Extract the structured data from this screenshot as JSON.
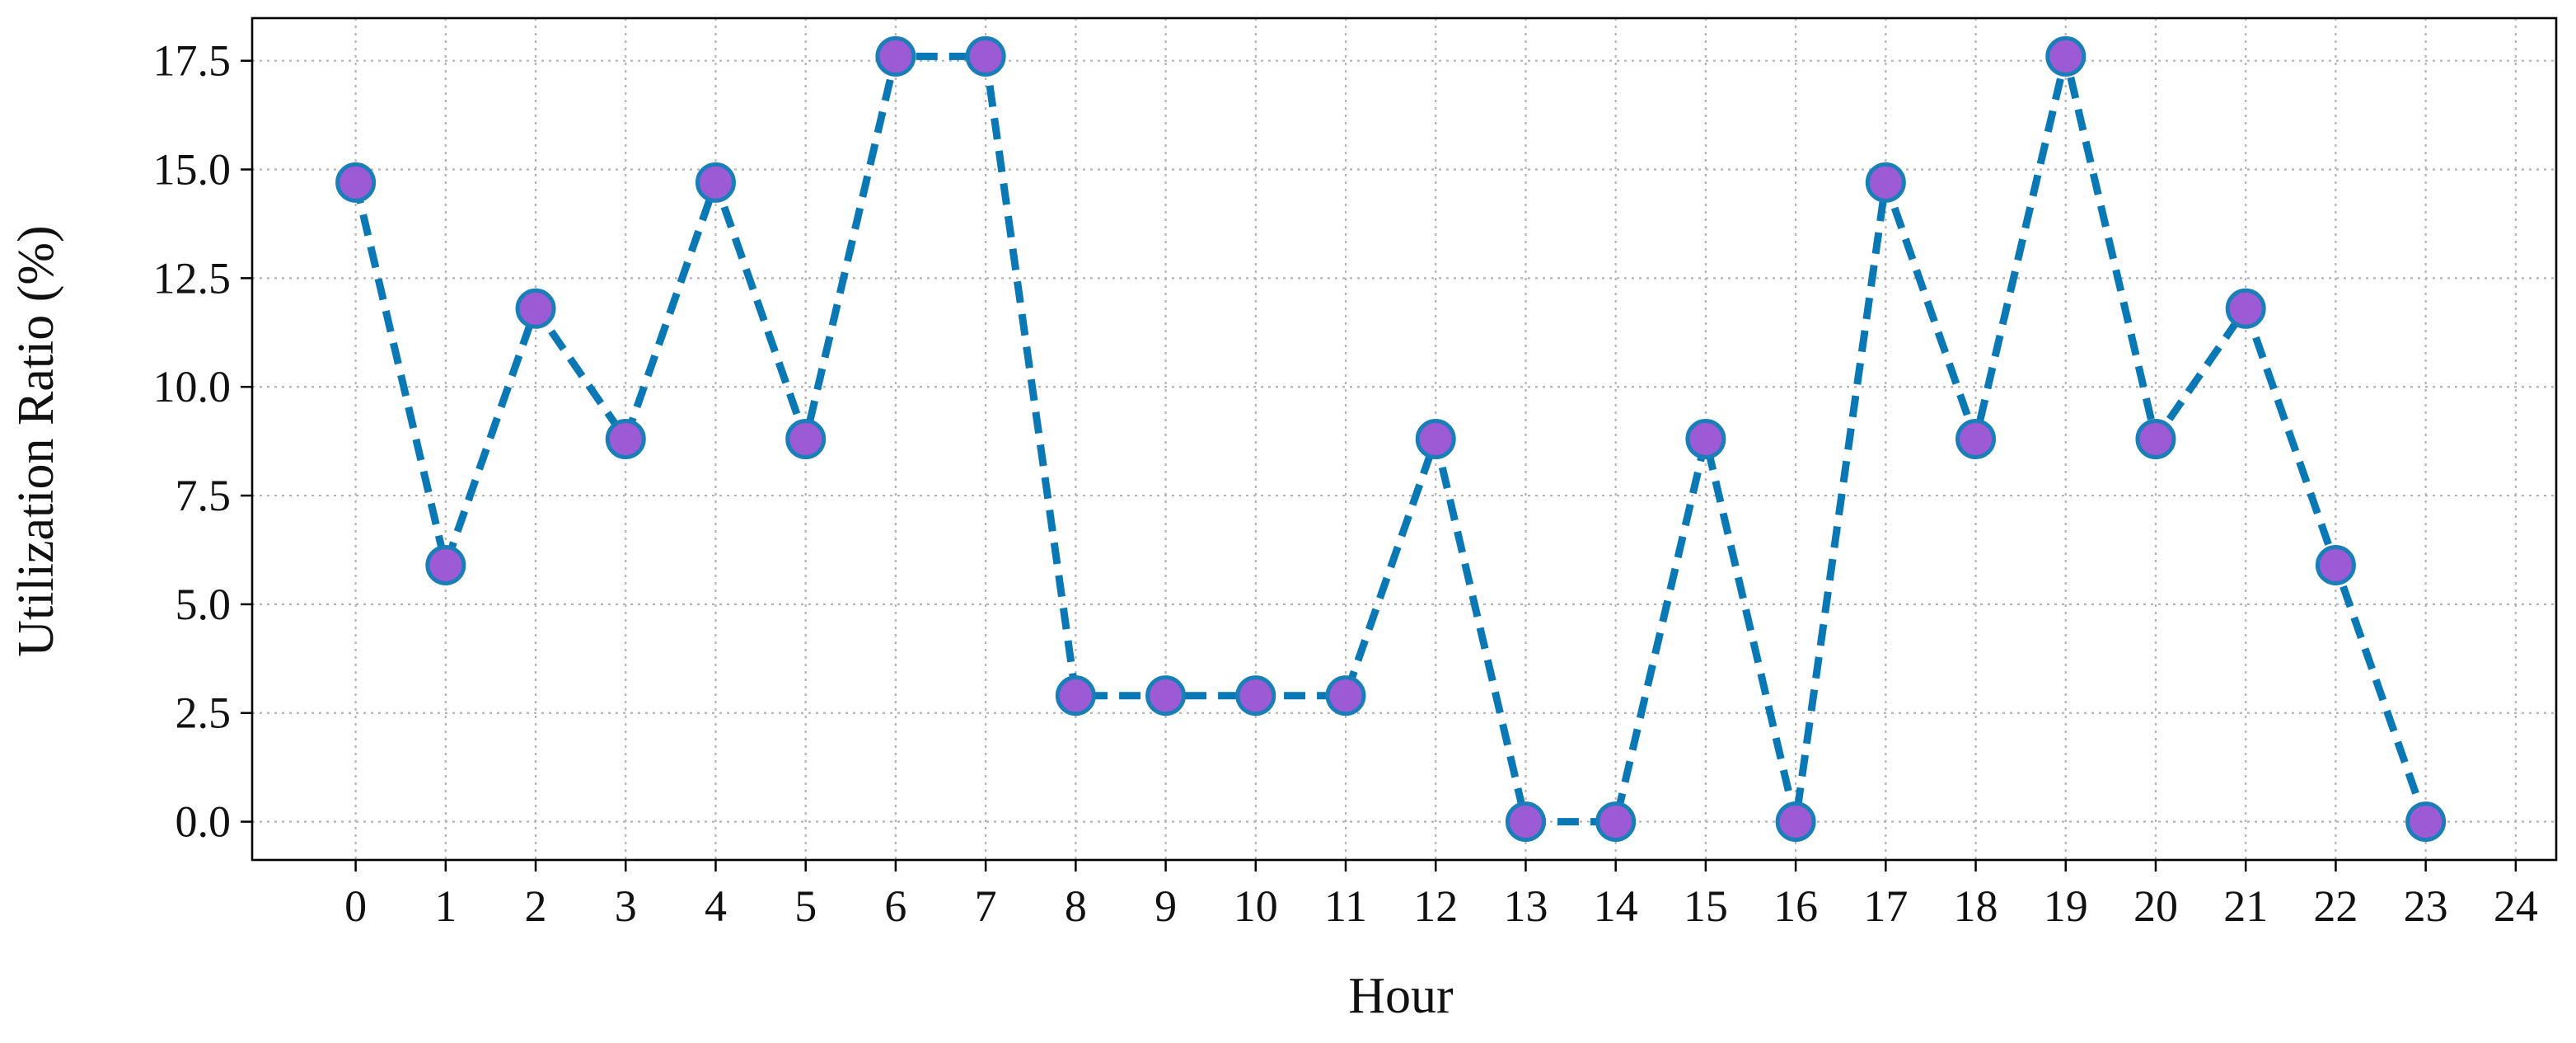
{
  "chart_data": {
    "type": "line",
    "xlabel": "Hour",
    "ylabel": "Utilization Ratio (%)",
    "x": [
      0,
      1,
      2,
      3,
      4,
      5,
      6,
      7,
      8,
      9,
      10,
      11,
      12,
      13,
      14,
      15,
      16,
      17,
      18,
      19,
      20,
      21,
      22,
      23
    ],
    "series": [
      {
        "values": [
          14.7,
          5.9,
          11.8,
          8.8,
          14.7,
          8.8,
          17.6,
          17.6,
          2.9,
          2.9,
          2.9,
          2.9,
          8.8,
          0.0,
          0.0,
          8.8,
          0.0,
          14.7,
          8.8,
          17.6,
          8.8,
          11.8,
          5.9,
          0.0
        ]
      }
    ],
    "xticks": [
      "0",
      "1",
      "2",
      "3",
      "4",
      "5",
      "6",
      "7",
      "8",
      "9",
      "10",
      "11",
      "12",
      "13",
      "14",
      "15",
      "16",
      "17",
      "18",
      "19",
      "20",
      "21",
      "22",
      "23",
      "24"
    ],
    "yticks": [
      "0.0",
      "2.5",
      "5.0",
      "7.5",
      "10.0",
      "12.5",
      "15.0",
      "17.5"
    ],
    "xlim": [
      -1.15,
      24.45
    ],
    "ylim": [
      -0.88,
      18.48
    ],
    "grid": true,
    "line_style": "dashed",
    "colors": {
      "line": "#0a78b5",
      "marker_fill": "#9c5ad4",
      "marker_edge": "#1a7fb8",
      "grid": "#b3b3b3",
      "axis": "#000000"
    }
  }
}
